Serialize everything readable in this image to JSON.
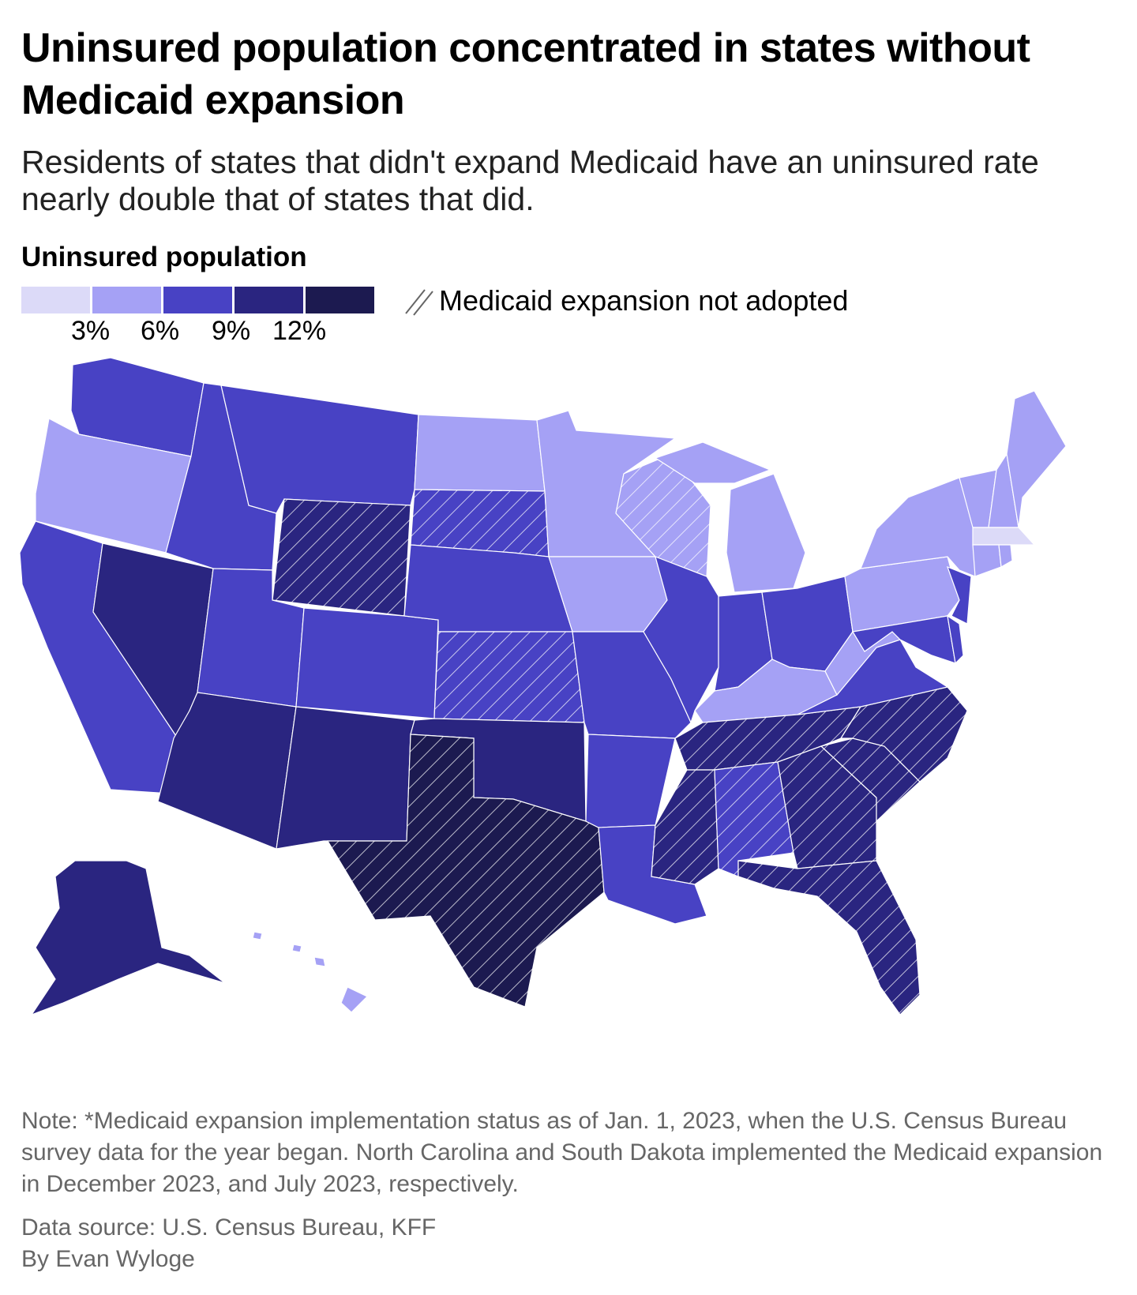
{
  "title": "Uninsured population concentrated in states without Medicaid expansion",
  "subtitle": "Residents of states that didn't expand Medicaid have an uninsured rate nearly double that of states that did.",
  "legend": {
    "title": "Uninsured population",
    "colors": [
      "#dcdaf8",
      "#a5a1f5",
      "#4842c4",
      "#2a2580",
      "#1c1a50"
    ],
    "ticks": [
      "3%",
      "6%",
      "9%",
      "12%"
    ],
    "hatch_label": "Medicaid expansion not adopted",
    "hatch_icon": "diagonal-hatch-icon"
  },
  "chart_data": {
    "type": "choropleth",
    "bins": [
      "<3%",
      "3–6%",
      "6–9%",
      "9–12%",
      ">12%"
    ],
    "states": [
      {
        "id": "WA",
        "bin": 2,
        "expansion": true
      },
      {
        "id": "OR",
        "bin": 1,
        "expansion": true
      },
      {
        "id": "CA",
        "bin": 2,
        "expansion": true
      },
      {
        "id": "NV",
        "bin": 3,
        "expansion": true
      },
      {
        "id": "ID",
        "bin": 2,
        "expansion": true
      },
      {
        "id": "MT",
        "bin": 2,
        "expansion": true
      },
      {
        "id": "WY",
        "bin": 3,
        "expansion": false
      },
      {
        "id": "UT",
        "bin": 2,
        "expansion": true
      },
      {
        "id": "CO",
        "bin": 2,
        "expansion": true
      },
      {
        "id": "AZ",
        "bin": 3,
        "expansion": true
      },
      {
        "id": "NM",
        "bin": 3,
        "expansion": true
      },
      {
        "id": "ND",
        "bin": 1,
        "expansion": true
      },
      {
        "id": "SD",
        "bin": 2,
        "expansion": false
      },
      {
        "id": "NE",
        "bin": 2,
        "expansion": true
      },
      {
        "id": "KS",
        "bin": 2,
        "expansion": false
      },
      {
        "id": "OK",
        "bin": 3,
        "expansion": true
      },
      {
        "id": "TX",
        "bin": 4,
        "expansion": false
      },
      {
        "id": "MN",
        "bin": 1,
        "expansion": true
      },
      {
        "id": "IA",
        "bin": 1,
        "expansion": true
      },
      {
        "id": "MO",
        "bin": 2,
        "expansion": true
      },
      {
        "id": "AR",
        "bin": 2,
        "expansion": true
      },
      {
        "id": "LA",
        "bin": 2,
        "expansion": true
      },
      {
        "id": "WI",
        "bin": 1,
        "expansion": false
      },
      {
        "id": "IL",
        "bin": 2,
        "expansion": true
      },
      {
        "id": "MI",
        "bin": 1,
        "expansion": true
      },
      {
        "id": "IN",
        "bin": 2,
        "expansion": true
      },
      {
        "id": "OH",
        "bin": 2,
        "expansion": true
      },
      {
        "id": "KY",
        "bin": 1,
        "expansion": true
      },
      {
        "id": "TN",
        "bin": 3,
        "expansion": false
      },
      {
        "id": "MS",
        "bin": 3,
        "expansion": false
      },
      {
        "id": "AL",
        "bin": 2,
        "expansion": false
      },
      {
        "id": "GA",
        "bin": 3,
        "expansion": false
      },
      {
        "id": "SC",
        "bin": 3,
        "expansion": false
      },
      {
        "id": "NC",
        "bin": 3,
        "expansion": false
      },
      {
        "id": "FL",
        "bin": 3,
        "expansion": false
      },
      {
        "id": "VA",
        "bin": 2,
        "expansion": true
      },
      {
        "id": "WV",
        "bin": 1,
        "expansion": true
      },
      {
        "id": "PA",
        "bin": 1,
        "expansion": true
      },
      {
        "id": "NY",
        "bin": 1,
        "expansion": true
      },
      {
        "id": "NJ",
        "bin": 2,
        "expansion": true
      },
      {
        "id": "MD",
        "bin": 2,
        "expansion": true
      },
      {
        "id": "DE",
        "bin": 2,
        "expansion": true
      },
      {
        "id": "VT",
        "bin": 1,
        "expansion": true
      },
      {
        "id": "NH",
        "bin": 1,
        "expansion": true
      },
      {
        "id": "ME",
        "bin": 1,
        "expansion": true
      },
      {
        "id": "MA",
        "bin": 0,
        "expansion": true
      },
      {
        "id": "CT",
        "bin": 1,
        "expansion": true
      },
      {
        "id": "RI",
        "bin": 1,
        "expansion": true
      },
      {
        "id": "AK",
        "bin": 3,
        "expansion": true
      },
      {
        "id": "HI",
        "bin": 1,
        "expansion": true
      }
    ]
  },
  "note": "Note: *Medicaid expansion implementation status as of Jan. 1, 2023, when the U.S. Census Bureau survey data for the year began. North Carolina and South Dakota implemented the Medicaid expansion in December 2023, and July 2023, respectively.",
  "source": "Data source: U.S. Census Bureau, KFF",
  "byline": "By Evan Wyloge"
}
